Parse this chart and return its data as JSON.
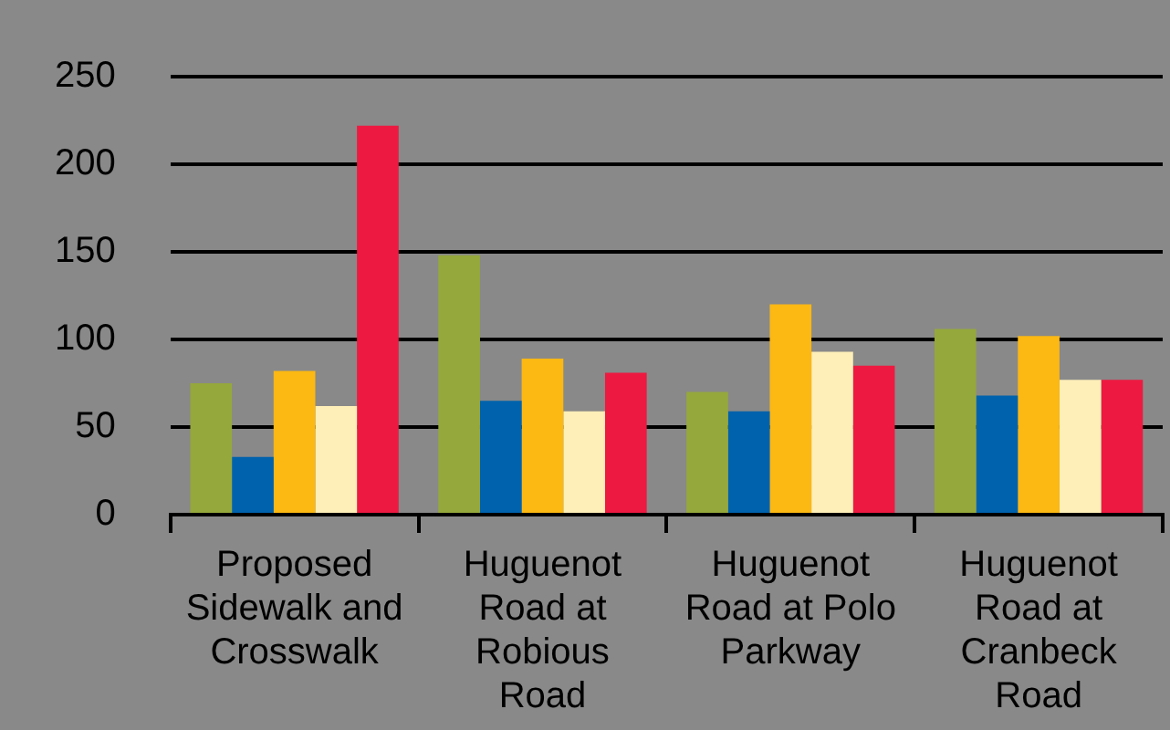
{
  "chart_data": {
    "type": "bar",
    "categories": [
      "Proposed Sidewalk and Crosswalk",
      "Huguenot Road at Robious Road",
      "Huguenot Road at Polo Parkway",
      "Huguenot Road at Cranbeck Road"
    ],
    "series": [
      {
        "color": "#95a83c",
        "values": [
          75,
          148,
          70,
          106
        ]
      },
      {
        "color": "#0062ac",
        "values": [
          33,
          65,
          59,
          68
        ]
      },
      {
        "color": "#fcb813",
        "values": [
          82,
          89,
          120,
          102
        ]
      },
      {
        "color": "#feefb8",
        "values": [
          62,
          59,
          93,
          77
        ]
      },
      {
        "color": "#ee1941",
        "values": [
          222,
          81,
          85,
          77
        ]
      }
    ],
    "ylim": [
      0,
      250
    ],
    "yticks": [
      0,
      50,
      100,
      150,
      200,
      250
    ],
    "grid": "y",
    "legend": false
  }
}
